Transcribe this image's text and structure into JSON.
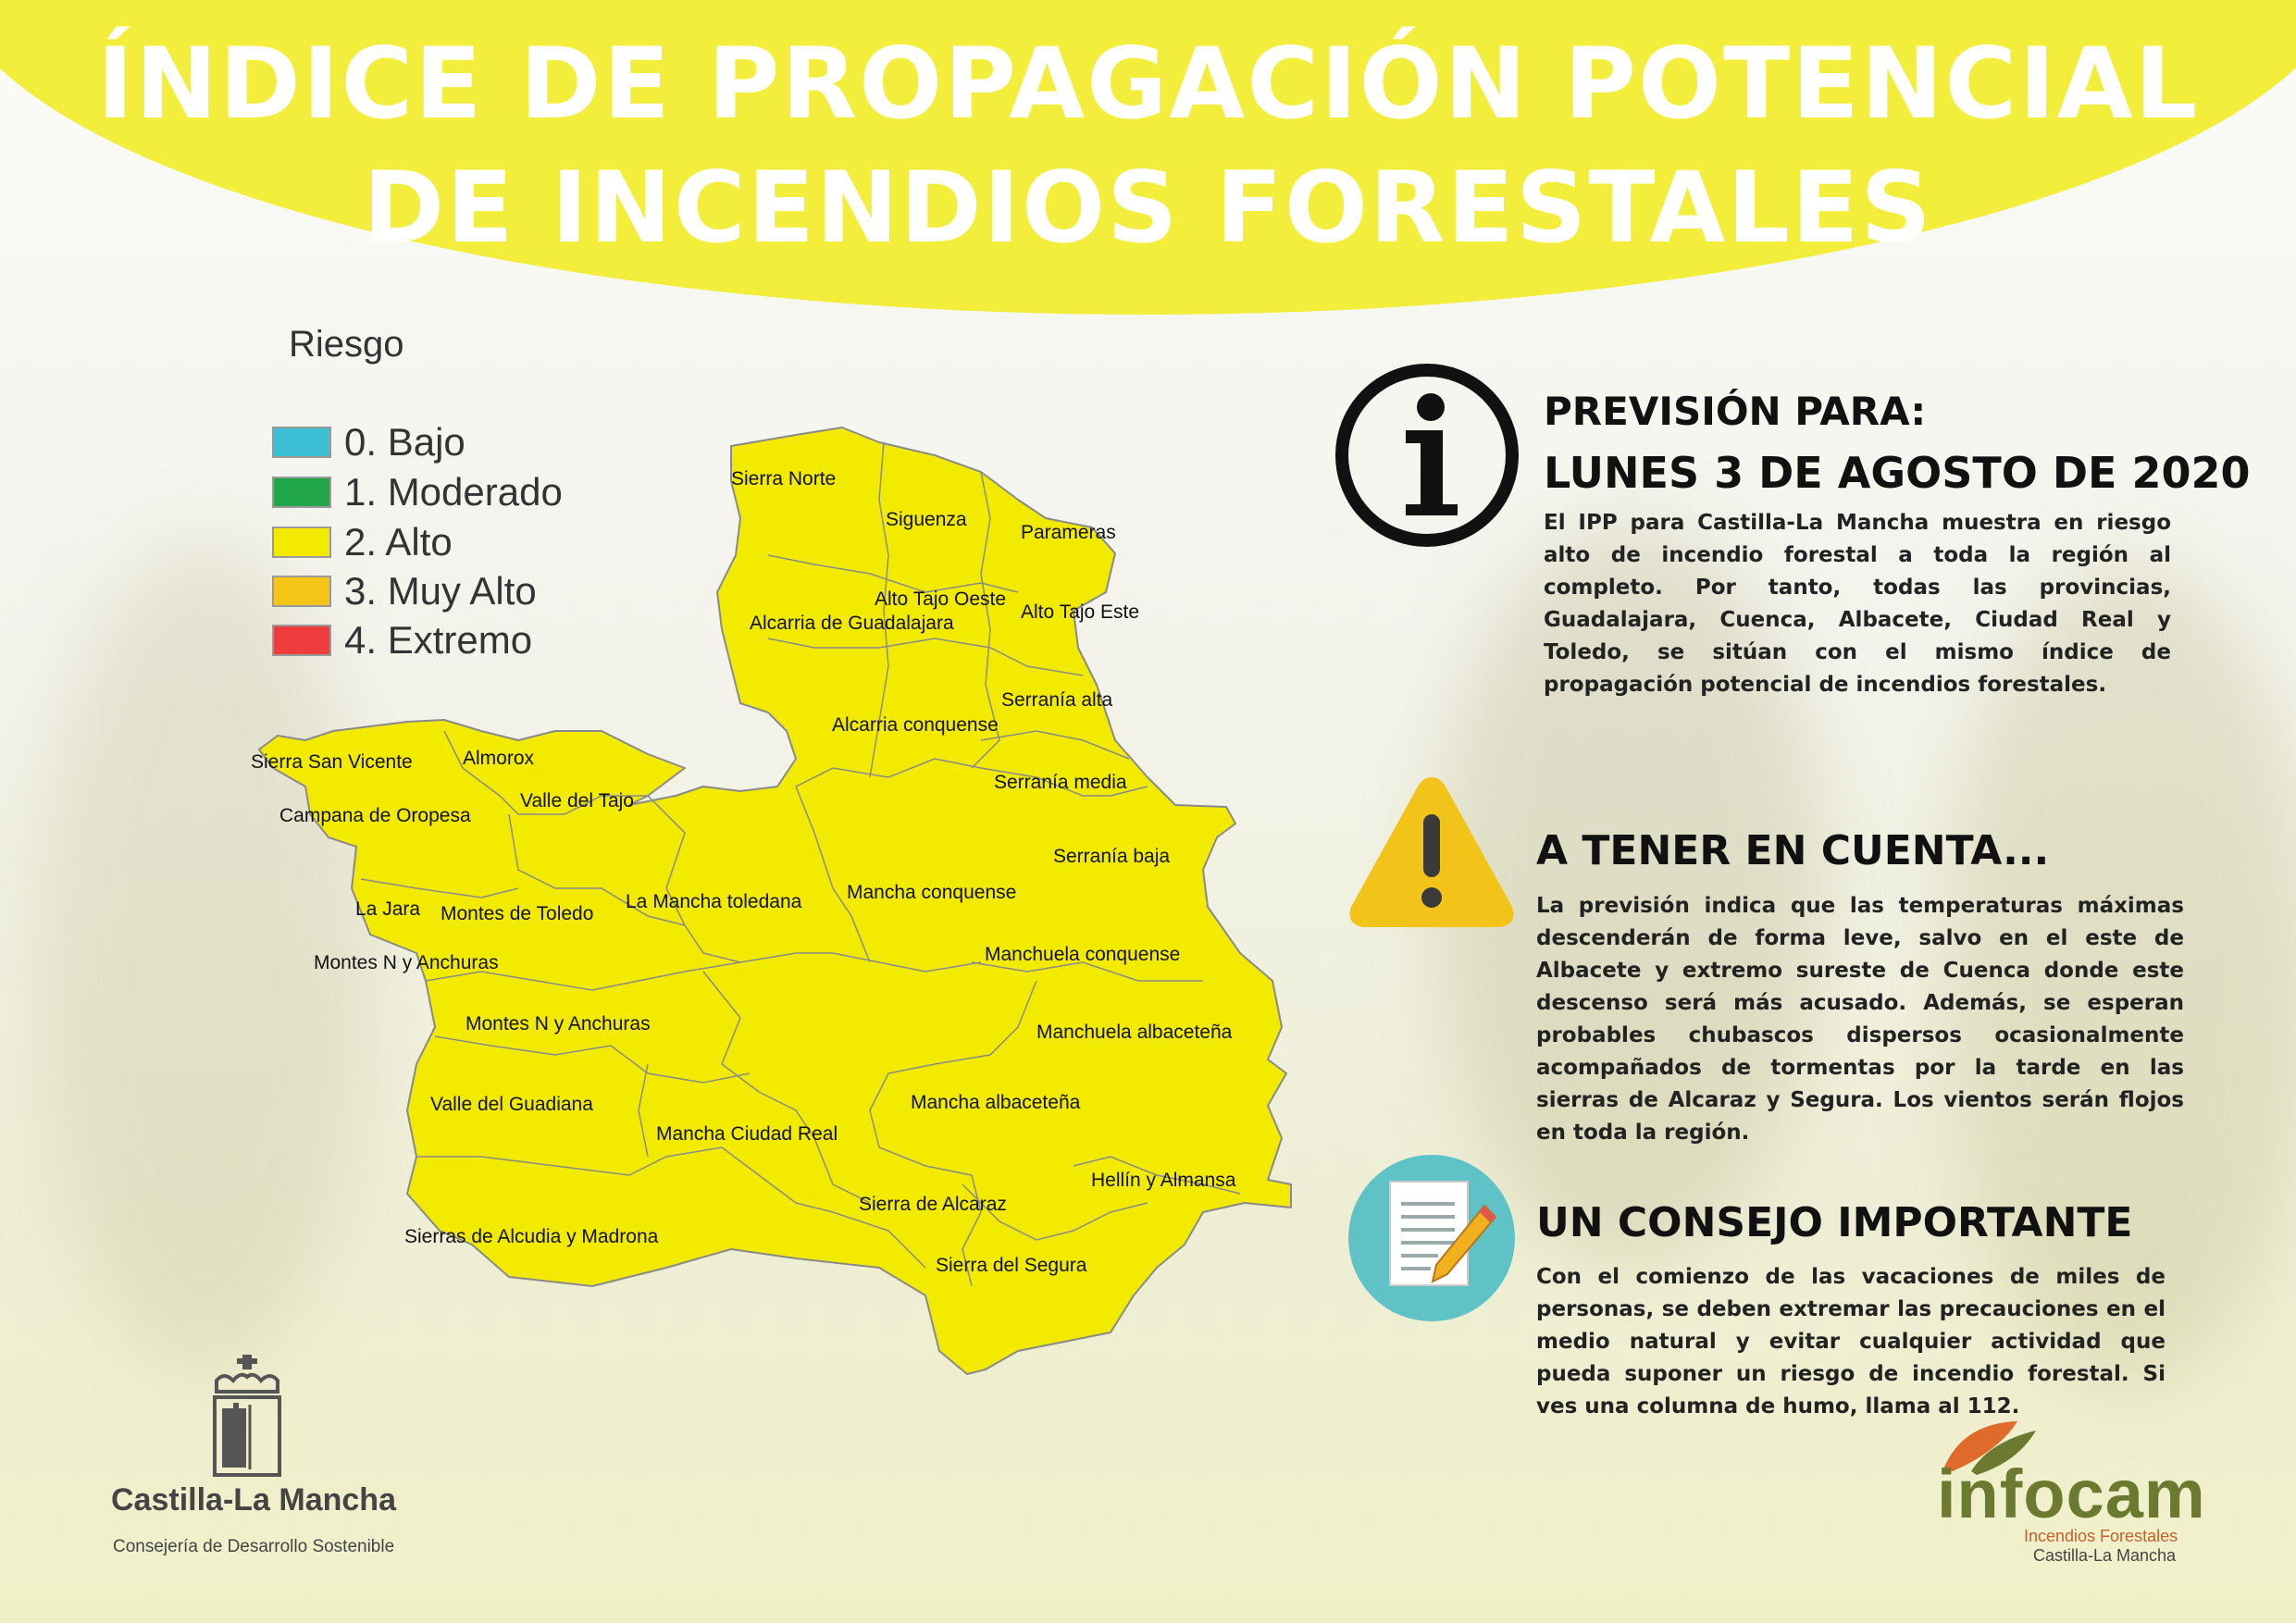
{
  "title_lines": [
    "ÍNDICE DE PROPAGACIÓN POTENCIAL",
    "DE INCENDIOS FORESTALES"
  ],
  "colors": {
    "header": "#f3ed3c",
    "map_fill": "#f2eb00",
    "map_stroke": "#8a8a8a"
  },
  "legend": {
    "title": "Riesgo",
    "items": [
      {
        "label": "0. Bajo",
        "color": "#3dbfd6"
      },
      {
        "label": "1. Moderado",
        "color": "#22a64a"
      },
      {
        "label": "2. Alto",
        "color": "#f2eb00"
      },
      {
        "label": "3. Muy Alto",
        "color": "#f5c518"
      },
      {
        "label": "4. Extremo",
        "color": "#ee3b3b"
      }
    ]
  },
  "map_regions": [
    "Sierra Norte",
    "Siguenza",
    "Parameras",
    "Alto Tajo Oeste",
    "Alcarria de Guadalajara",
    "Alto Tajo Este",
    "Serranía alta",
    "Alcarria conquense",
    "Serranía media",
    "Serranía baja",
    "Sierra San Vicente",
    "Almorox",
    "Valle del Tajo",
    "Campana de Oropesa",
    "La Jara",
    "Montes de Toledo",
    "La Mancha toledana",
    "Mancha conquense",
    "Montes N y Anchuras",
    "Manchuela conquense",
    "Montes N y Anchuras",
    "Manchuela albaceteña",
    "Valle del Guadiana",
    "Mancha albaceteña",
    "Mancha Ciudad Real",
    "Hellín y Almansa",
    "Sierra de Alcaraz",
    "Sierras de Alcudia y Madrona",
    "Sierra del Segura"
  ],
  "forecast": {
    "heading_1": "PREVISIÓN PARA:",
    "heading_2": "LUNES 3 DE AGOSTO DE 2020",
    "text": "El IPP para Castilla-La Mancha muestra en riesgo alto de incendio forestal a toda la región al completo. Por tanto, todas las provincias, Guadalajara, Cuenca, Albacete, Ciudad Real y Toledo, se sitúan con el mismo índice de propagación potencial de incendios forestales."
  },
  "notice": {
    "heading": "A TENER EN CUENTA...",
    "text": "La previsión indica que las temperaturas máximas descenderán de forma leve, salvo en el este de Albacete y extremo sureste de Cuenca donde este descenso será más acusado. Además, se esperan probables chubascos dispersos ocasionalmente acompañados de tormentas por la tarde en las sierras de Alcaraz y Segura. Los vientos serán flojos en toda la región."
  },
  "advice": {
    "heading": "UN CONSEJO IMPORTANTE",
    "text": "Con el comienzo de las vacaciones de miles de personas, se deben extremar las precauciones en el medio natural y evitar cualquier actividad que pueda suponer un riesgo de incendio forestal. Si ves una columna de humo, llama al 112."
  },
  "footer": {
    "gov_name": "Castilla-La Mancha",
    "gov_dept": "Consejería de Desarrollo Sostenible",
    "brand": "infocam",
    "brand_sub_1": "Incendios Forestales",
    "brand_sub_2": "Castilla-La Mancha"
  }
}
